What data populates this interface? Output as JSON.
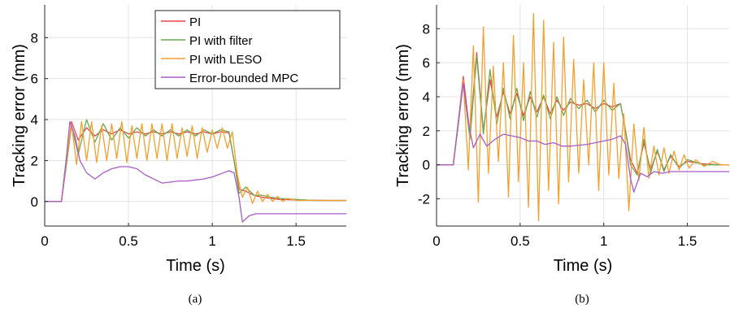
{
  "series_styles": [
    {
      "name": "PI",
      "color": "#e8454f"
    },
    {
      "name": "PI with filter",
      "color": "#6aaa4e"
    },
    {
      "name": "PI with LESO",
      "color": "#f5a02e"
    },
    {
      "name": "Error-bounded MPC",
      "color": "#a95cc7"
    }
  ],
  "chart_data": [
    {
      "type": "line",
      "caption": "(a)",
      "xlabel": "Time (s)",
      "ylabel": "Tracking error (mm)",
      "xlim": [
        0,
        1.8
      ],
      "ylim": [
        -1.2,
        9.6
      ],
      "xticks": [
        0,
        0.5,
        1,
        1.5
      ],
      "xtick_labels": [
        "0",
        "0.5",
        "1",
        "1.5"
      ],
      "yticks": [
        0,
        2,
        4,
        6,
        8
      ],
      "ytick_labels": [
        "0",
        "2",
        "4",
        "6",
        "8"
      ],
      "grid": true,
      "legend": "top-right",
      "series": [
        {
          "name": "PI",
          "x": [
            0,
            0.1,
            0.13,
            0.16,
            0.2,
            0.25,
            0.3,
            0.35,
            0.4,
            0.45,
            0.5,
            0.55,
            0.6,
            0.65,
            0.7,
            0.75,
            0.8,
            0.85,
            0.9,
            0.95,
            1.0,
            1.05,
            1.1,
            1.13,
            1.16,
            1.2,
            1.25,
            1.3,
            1.35,
            1.4,
            1.5,
            1.6,
            1.7,
            1.8
          ],
          "y": [
            0,
            0,
            2.0,
            3.9,
            3.0,
            3.6,
            3.2,
            3.5,
            3.3,
            3.5,
            3.3,
            3.4,
            3.3,
            3.4,
            3.3,
            3.4,
            3.3,
            3.4,
            3.3,
            3.4,
            3.3,
            3.4,
            3.35,
            2.0,
            0.6,
            0.5,
            0.3,
            0.2,
            0.15,
            0.1,
            0.08,
            0.06,
            0.05,
            0.05
          ]
        },
        {
          "name": "PI with filter",
          "x": [
            0,
            0.1,
            0.13,
            0.16,
            0.2,
            0.25,
            0.3,
            0.35,
            0.4,
            0.45,
            0.5,
            0.55,
            0.6,
            0.65,
            0.7,
            0.75,
            0.8,
            0.85,
            0.9,
            0.95,
            1.0,
            1.05,
            1.1,
            1.13,
            1.16,
            1.2,
            1.25,
            1.3,
            1.35,
            1.4,
            1.5,
            1.6,
            1.7,
            1.8
          ],
          "y": [
            0,
            0,
            1.8,
            3.7,
            2.3,
            4.0,
            2.9,
            3.8,
            3.0,
            3.6,
            3.1,
            3.6,
            3.2,
            3.5,
            3.2,
            3.5,
            3.2,
            3.5,
            3.2,
            3.5,
            3.3,
            3.5,
            3.4,
            2.0,
            0.4,
            0.7,
            0.3,
            0.3,
            0.2,
            0.15,
            0.1,
            0.05,
            0.05,
            0.05
          ]
        },
        {
          "name": "PI with LESO",
          "x": [
            0,
            0.1,
            0.13,
            0.16,
            0.19,
            0.22,
            0.25,
            0.28,
            0.31,
            0.34,
            0.37,
            0.4,
            0.43,
            0.46,
            0.49,
            0.52,
            0.55,
            0.58,
            0.61,
            0.64,
            0.67,
            0.7,
            0.73,
            0.76,
            0.79,
            0.82,
            0.85,
            0.88,
            0.91,
            0.94,
            0.97,
            1.0,
            1.03,
            1.06,
            1.09,
            1.12,
            1.15,
            1.18,
            1.21,
            1.24,
            1.27,
            1.3,
            1.33,
            1.36,
            1.39,
            1.42,
            1.45,
            1.5,
            1.6,
            1.7,
            1.8
          ],
          "y": [
            0,
            0,
            2.0,
            3.8,
            1.8,
            3.9,
            2.0,
            3.9,
            1.9,
            3.7,
            2.0,
            3.8,
            2.1,
            3.9,
            1.9,
            3.7,
            2.1,
            3.8,
            2.0,
            3.8,
            2.1,
            3.8,
            2.0,
            3.8,
            2.1,
            3.6,
            2.2,
            3.7,
            2.1,
            3.6,
            2.4,
            3.5,
            2.6,
            3.6,
            2.6,
            3.4,
            1.3,
            0.2,
            0.7,
            -0.1,
            0.5,
            0.0,
            0.35,
            0.0,
            0.25,
            0.0,
            0.15,
            0.05,
            0.05,
            0.05,
            0.05
          ]
        },
        {
          "name": "Error-bounded MPC",
          "x": [
            0,
            0.1,
            0.13,
            0.15,
            0.18,
            0.21,
            0.25,
            0.3,
            0.35,
            0.4,
            0.45,
            0.5,
            0.55,
            0.6,
            0.65,
            0.7,
            0.75,
            0.8,
            0.85,
            0.9,
            0.95,
            1.0,
            1.05,
            1.1,
            1.13,
            1.16,
            1.18,
            1.22,
            1.26,
            1.3,
            1.4,
            1.5,
            1.6,
            1.7,
            1.8
          ],
          "y": [
            0,
            0,
            2.2,
            3.9,
            3.2,
            2.0,
            1.4,
            1.1,
            1.4,
            1.6,
            1.7,
            1.7,
            1.6,
            1.3,
            1.1,
            0.9,
            0.95,
            1.0,
            1.0,
            1.05,
            1.1,
            1.2,
            1.35,
            1.5,
            1.4,
            0.2,
            -1.0,
            -0.7,
            -0.6,
            -0.6,
            -0.6,
            -0.6,
            -0.6,
            -0.6,
            -0.6
          ]
        }
      ]
    },
    {
      "type": "line",
      "caption": "(b)",
      "xlabel": "Time (s)",
      "ylabel": "Tracking error (mm)",
      "xlim": [
        0,
        1.75
      ],
      "ylim": [
        -3.6,
        9.4
      ],
      "xticks": [
        0,
        0.5,
        1,
        1.5
      ],
      "xtick_labels": [
        "0",
        "0.5",
        "1",
        "1.5"
      ],
      "yticks": [
        -2,
        0,
        2,
        4,
        6,
        8
      ],
      "ytick_labels": [
        "-2",
        "0",
        "2",
        "4",
        "6",
        "8"
      ],
      "grid": true,
      "series": [
        {
          "name": "PI",
          "x": [
            0,
            0.1,
            0.13,
            0.16,
            0.2,
            0.24,
            0.28,
            0.32,
            0.36,
            0.4,
            0.44,
            0.48,
            0.52,
            0.56,
            0.6,
            0.64,
            0.68,
            0.72,
            0.76,
            0.8,
            0.85,
            0.9,
            0.95,
            1.0,
            1.05,
            1.1,
            1.13,
            1.16,
            1.2,
            1.24,
            1.28,
            1.32,
            1.36,
            1.4,
            1.45,
            1.5,
            1.6,
            1.7,
            1.75
          ],
          "y": [
            0,
            0,
            2.5,
            5.2,
            1.8,
            6.6,
            2.0,
            5.0,
            2.8,
            4.3,
            3.0,
            4.2,
            2.9,
            4.0,
            3.1,
            4.0,
            3.0,
            3.8,
            3.2,
            3.7,
            3.5,
            3.6,
            3.3,
            3.6,
            3.4,
            3.6,
            2.0,
            0.3,
            -0.5,
            1.3,
            -0.3,
            0.8,
            -0.3,
            0.5,
            -0.1,
            0.2,
            0.05,
            0.0,
            0.0
          ]
        },
        {
          "name": "PI with filter",
          "x": [
            0,
            0.1,
            0.13,
            0.16,
            0.2,
            0.24,
            0.28,
            0.32,
            0.36,
            0.4,
            0.44,
            0.48,
            0.52,
            0.56,
            0.6,
            0.64,
            0.68,
            0.72,
            0.76,
            0.8,
            0.85,
            0.9,
            0.95,
            1.0,
            1.05,
            1.1,
            1.13,
            1.16,
            1.2,
            1.24,
            1.28,
            1.32,
            1.36,
            1.4,
            1.45,
            1.5,
            1.6,
            1.7,
            1.75
          ],
          "y": [
            0,
            0,
            2.3,
            4.8,
            1.5,
            6.4,
            1.8,
            5.6,
            2.4,
            4.5,
            2.7,
            4.5,
            2.6,
            4.3,
            2.8,
            4.1,
            2.7,
            4.0,
            2.9,
            3.9,
            3.3,
            3.8,
            3.1,
            3.8,
            3.2,
            3.6,
            2.0,
            0.0,
            -0.6,
            1.5,
            -0.5,
            0.9,
            -0.4,
            0.6,
            -0.2,
            0.3,
            0.0,
            0.0,
            0.0
          ]
        },
        {
          "name": "PI with LESO",
          "x": [
            0,
            0.1,
            0.13,
            0.16,
            0.19,
            0.22,
            0.25,
            0.28,
            0.31,
            0.34,
            0.37,
            0.4,
            0.43,
            0.46,
            0.49,
            0.52,
            0.55,
            0.58,
            0.61,
            0.64,
            0.67,
            0.7,
            0.73,
            0.76,
            0.79,
            0.82,
            0.85,
            0.88,
            0.91,
            0.94,
            0.97,
            1.0,
            1.03,
            1.06,
            1.09,
            1.12,
            1.15,
            1.18,
            1.21,
            1.24,
            1.27,
            1.3,
            1.33,
            1.36,
            1.39,
            1.42,
            1.45,
            1.48,
            1.51,
            1.55,
            1.6,
            1.65,
            1.7,
            1.75
          ],
          "y": [
            0,
            0,
            2.5,
            5.0,
            -0.3,
            7.0,
            -2.2,
            8.1,
            -0.5,
            5.8,
            0.2,
            6.0,
            -1.9,
            7.6,
            -1.0,
            6.0,
            -2.5,
            8.9,
            -3.3,
            8.5,
            -1.5,
            7.2,
            -2.3,
            7.5,
            -1.0,
            6.2,
            -0.5,
            5.0,
            0.0,
            6.0,
            -1.5,
            6.0,
            -0.6,
            4.8,
            -0.8,
            3.0,
            -2.7,
            2.4,
            -0.9,
            2.2,
            -0.8,
            1.1,
            -0.6,
            1.0,
            -0.5,
            0.8,
            -0.3,
            0.6,
            -0.2,
            0.3,
            -0.1,
            0.2,
            0.0,
            0.0
          ]
        },
        {
          "name": "Error-bounded MPC",
          "x": [
            0,
            0.1,
            0.13,
            0.16,
            0.19,
            0.22,
            0.26,
            0.3,
            0.35,
            0.4,
            0.45,
            0.5,
            0.55,
            0.6,
            0.65,
            0.7,
            0.75,
            0.8,
            0.85,
            0.9,
            0.95,
            1.0,
            1.05,
            1.1,
            1.13,
            1.16,
            1.18,
            1.22,
            1.26,
            1.3,
            1.35,
            1.4,
            1.5,
            1.6,
            1.7,
            1.75
          ],
          "y": [
            0,
            0,
            2.5,
            4.8,
            2.5,
            1.0,
            1.8,
            1.1,
            1.5,
            1.8,
            1.7,
            1.6,
            1.4,
            1.4,
            1.2,
            1.3,
            1.1,
            1.1,
            1.15,
            1.2,
            1.3,
            1.4,
            1.5,
            1.7,
            1.2,
            -0.8,
            -1.6,
            -0.5,
            -0.7,
            -0.4,
            -0.5,
            -0.4,
            -0.4,
            -0.4,
            -0.4,
            -0.4
          ]
        }
      ]
    }
  ]
}
